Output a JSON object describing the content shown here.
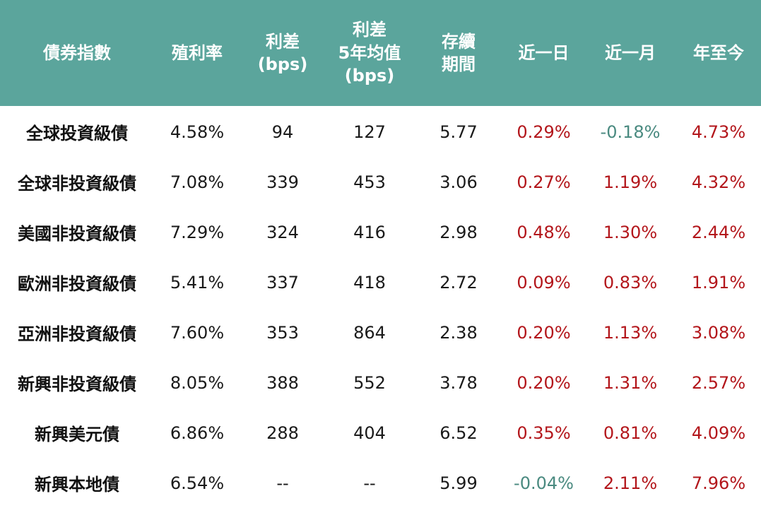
{
  "chart_data": {
    "type": "table",
    "columns": [
      "債券指數",
      "殖利率",
      "利差\n(bps)",
      "利差\n5年均值\n(bps)",
      "存續\n期間",
      "近一日",
      "近一月",
      "年至今"
    ],
    "rows": [
      {
        "name": "全球投資級債",
        "yield": "4.58%",
        "spread": "94",
        "spread_avg": "127",
        "duration": "5.77",
        "d1": "0.29%",
        "m1": "-0.18%",
        "ytd": "4.73%"
      },
      {
        "name": "全球非投資級債",
        "yield": "7.08%",
        "spread": "339",
        "spread_avg": "453",
        "duration": "3.06",
        "d1": "0.27%",
        "m1": "1.19%",
        "ytd": "4.32%"
      },
      {
        "name": "美國非投資級債",
        "yield": "7.29%",
        "spread": "324",
        "spread_avg": "416",
        "duration": "2.98",
        "d1": "0.48%",
        "m1": "1.30%",
        "ytd": "2.44%"
      },
      {
        "name": "歐洲非投資級債",
        "yield": "5.41%",
        "spread": "337",
        "spread_avg": "418",
        "duration": "2.72",
        "d1": "0.09%",
        "m1": "0.83%",
        "ytd": "1.91%"
      },
      {
        "name": "亞洲非投資級債",
        "yield": "7.60%",
        "spread": "353",
        "spread_avg": "864",
        "duration": "2.38",
        "d1": "0.20%",
        "m1": "1.13%",
        "ytd": "3.08%"
      },
      {
        "name": "新興非投資級債",
        "yield": "8.05%",
        "spread": "388",
        "spread_avg": "552",
        "duration": "3.78",
        "d1": "0.20%",
        "m1": "1.31%",
        "ytd": "2.57%"
      },
      {
        "name": "新興美元債",
        "yield": "6.86%",
        "spread": "288",
        "spread_avg": "404",
        "duration": "6.52",
        "d1": "0.35%",
        "m1": "0.81%",
        "ytd": "4.09%"
      },
      {
        "name": "新興本地債",
        "yield": "6.54%",
        "spread": "--",
        "spread_avg": "--",
        "duration": "5.99",
        "d1": "-0.04%",
        "m1": "2.11%",
        "ytd": "7.96%"
      }
    ],
    "colors": {
      "header_bg": "#5ba59c",
      "header_text": "#ffffff",
      "positive": "#b3161b",
      "negative": "#4a8a80",
      "neutral": "#1a1a1a"
    }
  }
}
